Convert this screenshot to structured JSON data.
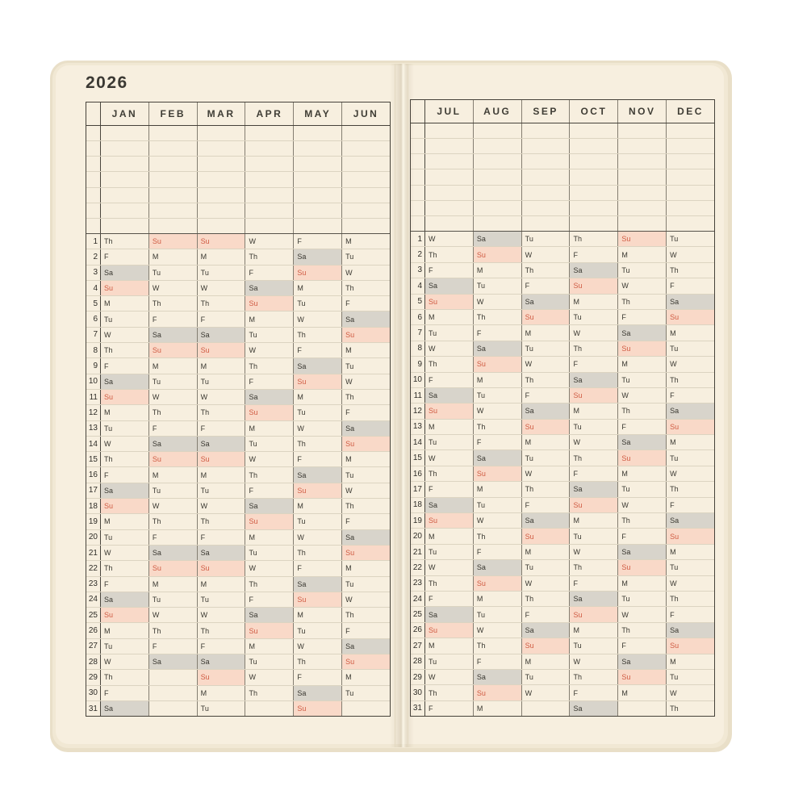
{
  "page": {
    "title_year": "2026"
  },
  "colors": {
    "page_cream": "#f7efdf",
    "saturday_fill": "#d8d4cb",
    "sunday_fill": "#f9d9c8",
    "sunday_text": "#d05c44",
    "grid_dark": "#46423a",
    "grid_light": "#dcd4c1",
    "ink": "#3a3831"
  },
  "calendar": {
    "day_numbers": [
      1,
      2,
      3,
      4,
      5,
      6,
      7,
      8,
      9,
      10,
      11,
      12,
      13,
      14,
      15,
      16,
      17,
      18,
      19,
      20,
      21,
      22,
      23,
      24,
      25,
      26,
      27,
      28,
      29,
      30,
      31
    ],
    "saturday_abbr": "Sa",
    "sunday_abbr": "Su",
    "months": [
      {
        "label": "JAN",
        "days": [
          "Th",
          "F",
          "Sa",
          "Su",
          "M",
          "Tu",
          "W",
          "Th",
          "F",
          "Sa",
          "Su",
          "M",
          "Tu",
          "W",
          "Th",
          "F",
          "Sa",
          "Su",
          "M",
          "Tu",
          "W",
          "Th",
          "F",
          "Sa",
          "Su",
          "M",
          "Tu",
          "W",
          "Th",
          "F",
          "Sa"
        ]
      },
      {
        "label": "FEB",
        "days": [
          "Su",
          "M",
          "Tu",
          "W",
          "Th",
          "F",
          "Sa",
          "Su",
          "M",
          "Tu",
          "W",
          "Th",
          "F",
          "Sa",
          "Su",
          "M",
          "Tu",
          "W",
          "Th",
          "F",
          "Sa",
          "Su",
          "M",
          "Tu",
          "W",
          "Th",
          "F",
          "Sa"
        ]
      },
      {
        "label": "MAR",
        "days": [
          "Su",
          "M",
          "Tu",
          "W",
          "Th",
          "F",
          "Sa",
          "Su",
          "M",
          "Tu",
          "W",
          "Th",
          "F",
          "Sa",
          "Su",
          "M",
          "Tu",
          "W",
          "Th",
          "F",
          "Sa",
          "Su",
          "M",
          "Tu",
          "W",
          "Th",
          "F",
          "Sa",
          "Su",
          "M",
          "Tu"
        ]
      },
      {
        "label": "APR",
        "days": [
          "W",
          "Th",
          "F",
          "Sa",
          "Su",
          "M",
          "Tu",
          "W",
          "Th",
          "F",
          "Sa",
          "Su",
          "M",
          "Tu",
          "W",
          "Th",
          "F",
          "Sa",
          "Su",
          "M",
          "Tu",
          "W",
          "Th",
          "F",
          "Sa",
          "Su",
          "M",
          "Tu",
          "W",
          "Th"
        ]
      },
      {
        "label": "MAY",
        "days": [
          "F",
          "Sa",
          "Su",
          "M",
          "Tu",
          "W",
          "Th",
          "F",
          "Sa",
          "Su",
          "M",
          "Tu",
          "W",
          "Th",
          "F",
          "Sa",
          "Su",
          "M",
          "Tu",
          "W",
          "Th",
          "F",
          "Sa",
          "Su",
          "M",
          "Tu",
          "W",
          "Th",
          "F",
          "Sa",
          "Su"
        ]
      },
      {
        "label": "JUN",
        "days": [
          "M",
          "Tu",
          "W",
          "Th",
          "F",
          "Sa",
          "Su",
          "M",
          "Tu",
          "W",
          "Th",
          "F",
          "Sa",
          "Su",
          "M",
          "Tu",
          "W",
          "Th",
          "F",
          "Sa",
          "Su",
          "M",
          "Tu",
          "W",
          "Th",
          "F",
          "Sa",
          "Su",
          "M",
          "Tu"
        ]
      },
      {
        "label": "JUL",
        "days": [
          "W",
          "Th",
          "F",
          "Sa",
          "Su",
          "M",
          "Tu",
          "W",
          "Th",
          "F",
          "Sa",
          "Su",
          "M",
          "Tu",
          "W",
          "Th",
          "F",
          "Sa",
          "Su",
          "M",
          "Tu",
          "W",
          "Th",
          "F",
          "Sa",
          "Su",
          "M",
          "Tu",
          "W",
          "Th",
          "F"
        ]
      },
      {
        "label": "AUG",
        "days": [
          "Sa",
          "Su",
          "M",
          "Tu",
          "W",
          "Th",
          "F",
          "Sa",
          "Su",
          "M",
          "Tu",
          "W",
          "Th",
          "F",
          "Sa",
          "Su",
          "M",
          "Tu",
          "W",
          "Th",
          "F",
          "Sa",
          "Su",
          "M",
          "Tu",
          "W",
          "Th",
          "F",
          "Sa",
          "Su",
          "M"
        ]
      },
      {
        "label": "SEP",
        "days": [
          "Tu",
          "W",
          "Th",
          "F",
          "Sa",
          "Su",
          "M",
          "Tu",
          "W",
          "Th",
          "F",
          "Sa",
          "Su",
          "M",
          "Tu",
          "W",
          "Th",
          "F",
          "Sa",
          "Su",
          "M",
          "Tu",
          "W",
          "Th",
          "F",
          "Sa",
          "Su",
          "M",
          "Tu",
          "W"
        ]
      },
      {
        "label": "OCT",
        "days": [
          "Th",
          "F",
          "Sa",
          "Su",
          "M",
          "Tu",
          "W",
          "Th",
          "F",
          "Sa",
          "Su",
          "M",
          "Tu",
          "W",
          "Th",
          "F",
          "Sa",
          "Su",
          "M",
          "Tu",
          "W",
          "Th",
          "F",
          "Sa",
          "Su",
          "M",
          "Tu",
          "W",
          "Th",
          "F",
          "Sa"
        ]
      },
      {
        "label": "NOV",
        "days": [
          "Su",
          "M",
          "Tu",
          "W",
          "Th",
          "F",
          "Sa",
          "Su",
          "M",
          "Tu",
          "W",
          "Th",
          "F",
          "Sa",
          "Su",
          "M",
          "Tu",
          "W",
          "Th",
          "F",
          "Sa",
          "Su",
          "M",
          "Tu",
          "W",
          "Th",
          "F",
          "Sa",
          "Su",
          "M"
        ]
      },
      {
        "label": "DEC",
        "days": [
          "Tu",
          "W",
          "Th",
          "F",
          "Sa",
          "Su",
          "M",
          "Tu",
          "W",
          "Th",
          "F",
          "Sa",
          "Su",
          "M",
          "Tu",
          "W",
          "Th",
          "F",
          "Sa",
          "Su",
          "M",
          "Tu",
          "W",
          "Th",
          "F",
          "Sa",
          "Su",
          "M",
          "Tu",
          "W",
          "Th"
        ]
      }
    ]
  }
}
